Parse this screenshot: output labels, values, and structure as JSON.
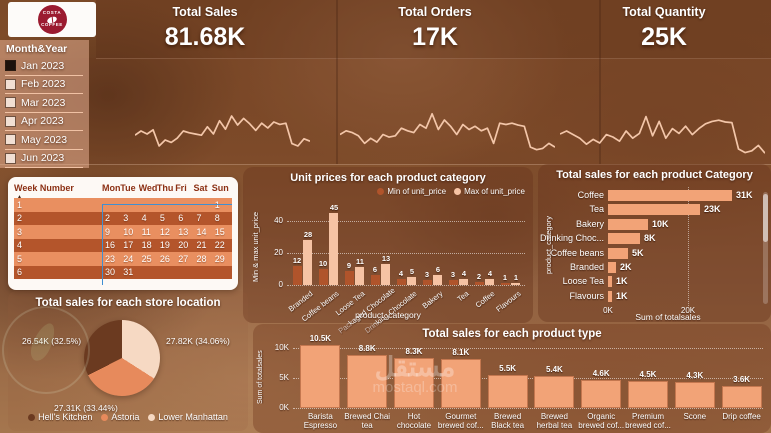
{
  "colors": {
    "bar_light": "#F2A377",
    "bar_pale": "#F6C3A4",
    "bar_dark": "#B0542B",
    "row_light": "#E98F60",
    "row_dark": "#B4552B",
    "accent_blue": "#3F8FD2",
    "costa_red": "#9B1B30",
    "spark_line": "#F3C6A9"
  },
  "logo": {
    "top": "COSTA",
    "bottom": "COFFEE"
  },
  "kpis": [
    {
      "title": "Total Sales",
      "value": "81.68K"
    },
    {
      "title": "Total Orders",
      "value": "17K"
    },
    {
      "title": "Total Quantity",
      "value": "25K"
    }
  ],
  "slicer": {
    "title": "Month&Year",
    "items": [
      {
        "label": "Jan 2023",
        "checked": true
      },
      {
        "label": "Feb 2023",
        "checked": false
      },
      {
        "label": "Mar 2023",
        "checked": false
      },
      {
        "label": "Apr 2023",
        "checked": false
      },
      {
        "label": "May 2023",
        "checked": false
      },
      {
        "label": "Jun 2023",
        "checked": false
      }
    ]
  },
  "calendar": {
    "sort_indicator": "▲",
    "columns": [
      "Week Number",
      "Mon",
      "Tue",
      "Wed",
      "Thu",
      "Fri",
      "Sat",
      "Sun"
    ],
    "rows": [
      [
        "1",
        "",
        "",
        "",
        "",
        "",
        "",
        "1"
      ],
      [
        "2",
        "2",
        "3",
        "4",
        "5",
        "6",
        "7",
        "8"
      ],
      [
        "3",
        "9",
        "10",
        "11",
        "12",
        "13",
        "14",
        "15"
      ],
      [
        "4",
        "16",
        "17",
        "18",
        "19",
        "20",
        "21",
        "22"
      ],
      [
        "5",
        "23",
        "24",
        "25",
        "26",
        "27",
        "28",
        "29"
      ],
      [
        "6",
        "30",
        "31",
        "",
        "",
        "",
        "",
        ""
      ]
    ]
  },
  "watermark": {
    "arabic": "مستقل",
    "latin": "mostaql.com"
  },
  "chart_data": [
    {
      "id": "total-sales-sparkline",
      "type": "line",
      "title": "Total Sales trend",
      "values": [
        38,
        45,
        40,
        47,
        20,
        30,
        26,
        33,
        45,
        42,
        40,
        38,
        52,
        40,
        62,
        48,
        70,
        55,
        66,
        57,
        46,
        58,
        50,
        60,
        56,
        58,
        24,
        20,
        32,
        28
      ]
    },
    {
      "id": "total-orders-sparkline",
      "type": "line",
      "title": "Total Orders trend",
      "values": [
        42,
        48,
        45,
        40,
        28,
        36,
        30,
        42,
        38,
        40,
        52,
        48,
        45,
        58,
        52,
        75,
        50,
        65,
        55,
        42,
        58,
        50,
        55,
        48,
        52,
        28,
        60,
        58,
        60,
        57,
        55,
        22,
        18,
        20,
        28,
        22
      ]
    },
    {
      "id": "total-quantity-sparkline",
      "type": "line",
      "title": "Total Quantity trend",
      "values": [
        45,
        50,
        44,
        38,
        28,
        36,
        30,
        44,
        40,
        33,
        50,
        38,
        46,
        74,
        42,
        66,
        38,
        54,
        46,
        58,
        44,
        54,
        62,
        66,
        68,
        65,
        64,
        20,
        14,
        17,
        26,
        13
      ]
    },
    {
      "id": "unit-prices",
      "type": "bar",
      "title": "Unit prices for each product category",
      "xlabel": "product_category",
      "ylabel": "Min & max unit_price",
      "yticks": [
        0,
        20,
        40
      ],
      "ylim": [
        0,
        50
      ],
      "grid": true,
      "legend_position": "top-right",
      "categories": [
        "Branded",
        "Coffee beans",
        "Loose Tea",
        "Packaged Chocolate",
        "Drinking Chocolate",
        "Bakery",
        "Tea",
        "Coffee",
        "Flavours"
      ],
      "series": [
        {
          "name": "Min of unit_price",
          "values": [
            12,
            10,
            9,
            6,
            4,
            3,
            3,
            2,
            1
          ]
        },
        {
          "name": "Max of unit_price",
          "values": [
            28,
            45,
            11,
            13,
            5,
            6,
            4,
            4,
            1
          ]
        }
      ]
    },
    {
      "id": "category-sales",
      "type": "bar",
      "orientation": "horizontal",
      "title": "Total sales for each product Category",
      "xlabel": "Sum of totalsales",
      "ylabel": "product_category",
      "xticks": [
        "0K",
        "20K"
      ],
      "xlim_k": [
        0,
        31
      ],
      "units": "K",
      "categories": [
        "Coffee",
        "Tea",
        "Bakery",
        "Drinking Choc...",
        "Coffee beans",
        "Branded",
        "Loose Tea",
        "Flavours"
      ],
      "values": [
        31,
        23,
        10,
        8,
        5,
        2,
        1,
        1
      ],
      "value_labels": [
        "31K",
        "23K",
        "10K",
        "8K",
        "5K",
        "2K",
        "1K",
        "1K"
      ]
    },
    {
      "id": "store-sales",
      "type": "pie",
      "title": "Total sales for each store location",
      "legend_position": "bottom",
      "slices": [
        {
          "name": "Lower Manhattan",
          "label": "27.82K (34.06%)",
          "value_k": 27.82,
          "pct": 34.06,
          "color": "#F6D9C3"
        },
        {
          "name": "Astoria",
          "label": "27.31K (33.44%)",
          "value_k": 27.31,
          "pct": 33.44,
          "color": "#E78A5C"
        },
        {
          "name": "Hell's Kitchen",
          "label": "26.54K (32.5%)",
          "value_k": 26.54,
          "pct": 32.5,
          "color": "#6B3A20"
        }
      ],
      "legend": [
        "Hell's Kitchen",
        "Astoria",
        "Lower Manhattan"
      ]
    },
    {
      "id": "product-type-sales",
      "type": "bar",
      "title": "Total sales for each product type",
      "ylabel": "Sum of totalsales",
      "yticks": [
        "0K",
        "5K",
        "10K"
      ],
      "ylim_k": [
        0,
        11.5
      ],
      "units": "K",
      "grid": true,
      "categories": [
        "Barista Espresso",
        "Brewed Chai tea",
        "Hot chocolate",
        "Gourmet brewed cof...",
        "Brewed Black tea",
        "Brewed herbal tea",
        "Organic brewed cof...",
        "Premium brewed cof...",
        "Scone",
        "Drip coffee"
      ],
      "values": [
        10.5,
        8.8,
        8.3,
        8.1,
        5.5,
        5.4,
        4.6,
        4.5,
        4.3,
        3.6
      ],
      "value_labels": [
        "10.5K",
        "8.8K",
        "8.3K",
        "8.1K",
        "5.5K",
        "5.4K",
        "4.6K",
        "4.5K",
        "4.3K",
        "3.6K"
      ]
    }
  ]
}
